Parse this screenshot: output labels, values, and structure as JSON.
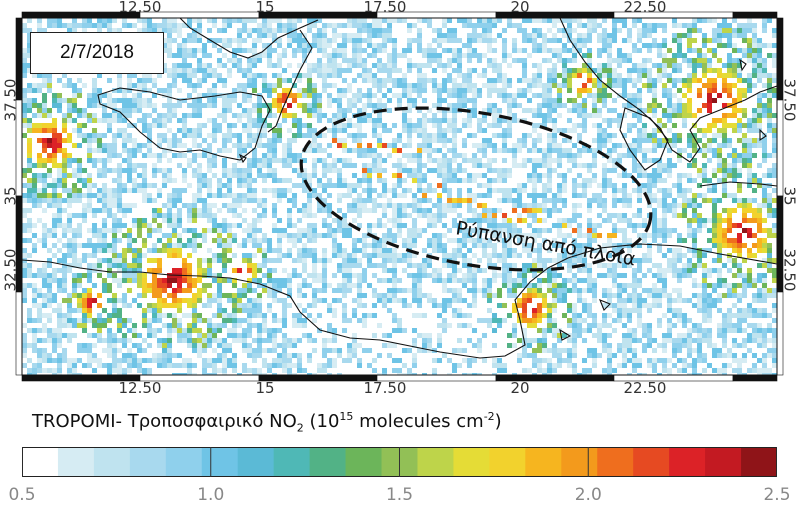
{
  "map": {
    "date": "2/7/2018",
    "annotation": "Ρύπανση από πλοία",
    "lon_ticks": [
      "12.50",
      "15",
      "17.50",
      "20",
      "22.50"
    ],
    "lat_ticks": [
      "37.50",
      "35",
      "32.50"
    ],
    "colors": {
      "land_outline": "#111111",
      "ellipse": "#111111",
      "background_low": "#ffffff",
      "typical_pixel": "#9fd4ea",
      "hotspot": "#9b0f12"
    }
  },
  "colorbar": {
    "title_prefix": "TROPOMI- Τροποσφαιρικό NO",
    "title_sub": "2",
    "title_mid": " (10",
    "title_sup": "15",
    "title_units": " molecules cm",
    "title_sup2": "-2",
    "title_end": ")",
    "min": 0.5,
    "max": 2.5,
    "tick_labels": [
      "0.5",
      "1.0",
      "1.5",
      "2.0",
      "2.5"
    ],
    "tick_values": [
      0.5,
      1.0,
      1.5,
      2.0,
      2.5
    ],
    "colors": [
      "#ffffff",
      "#d6ecf3",
      "#bfe3ef",
      "#a8d9ee",
      "#8fd0ec",
      "#6fc4e6",
      "#5bbad6",
      "#4fb8b6",
      "#52b286",
      "#6cb55a",
      "#92c056",
      "#bed44a",
      "#e5dc36",
      "#f2d22d",
      "#f6b51f",
      "#f39a1c",
      "#ef6e1e",
      "#e64a22",
      "#dc2227",
      "#c31a22",
      "#8f1418"
    ]
  }
}
